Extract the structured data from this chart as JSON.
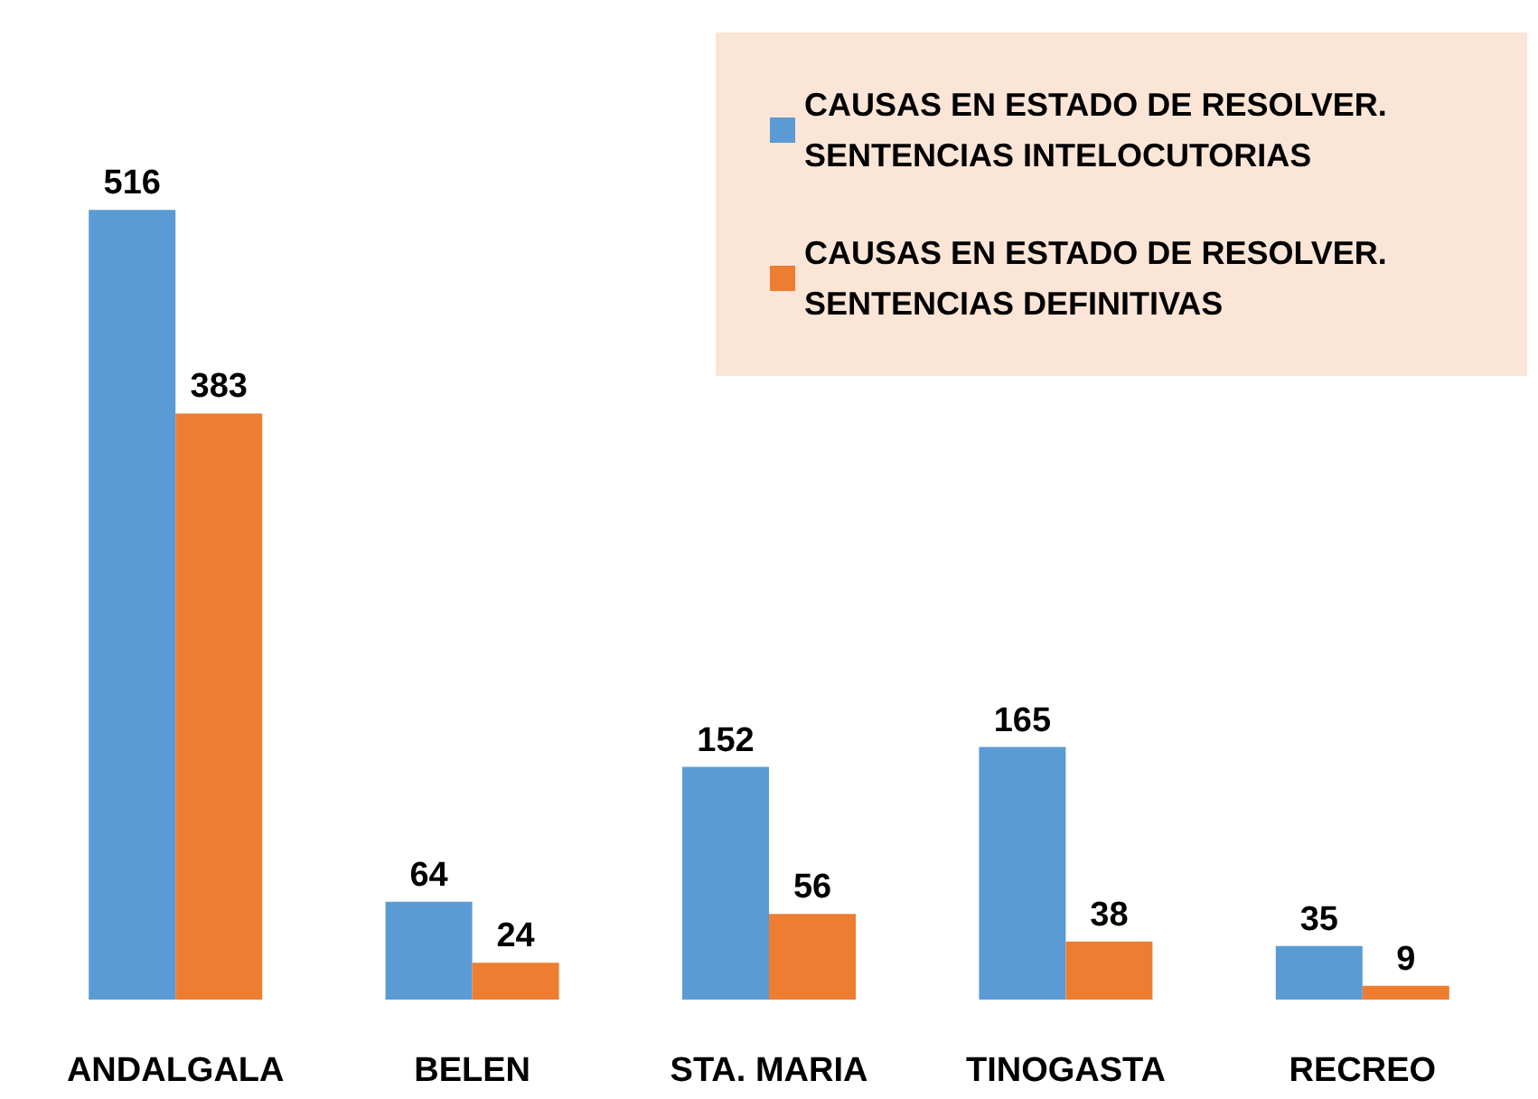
{
  "chart_data": {
    "type": "bar",
    "categories": [
      "ANDALGALA",
      "BELEN",
      "STA. MARIA",
      "TINOGASTA",
      "RECREO"
    ],
    "series": [
      {
        "name": "CAUSAS EN ESTADO DE RESOLVER. SENTENCIAS INTELOCUTORIAS",
        "color": "#5b9bd5",
        "values": [
          516,
          64,
          152,
          165,
          35
        ]
      },
      {
        "name": "CAUSAS EN ESTADO DE RESOLVER. SENTENCIAS DEFINITIVAS",
        "color": "#ed7d31",
        "values": [
          383,
          24,
          56,
          38,
          9
        ]
      }
    ],
    "data_labels": true,
    "legend": "top right"
  }
}
